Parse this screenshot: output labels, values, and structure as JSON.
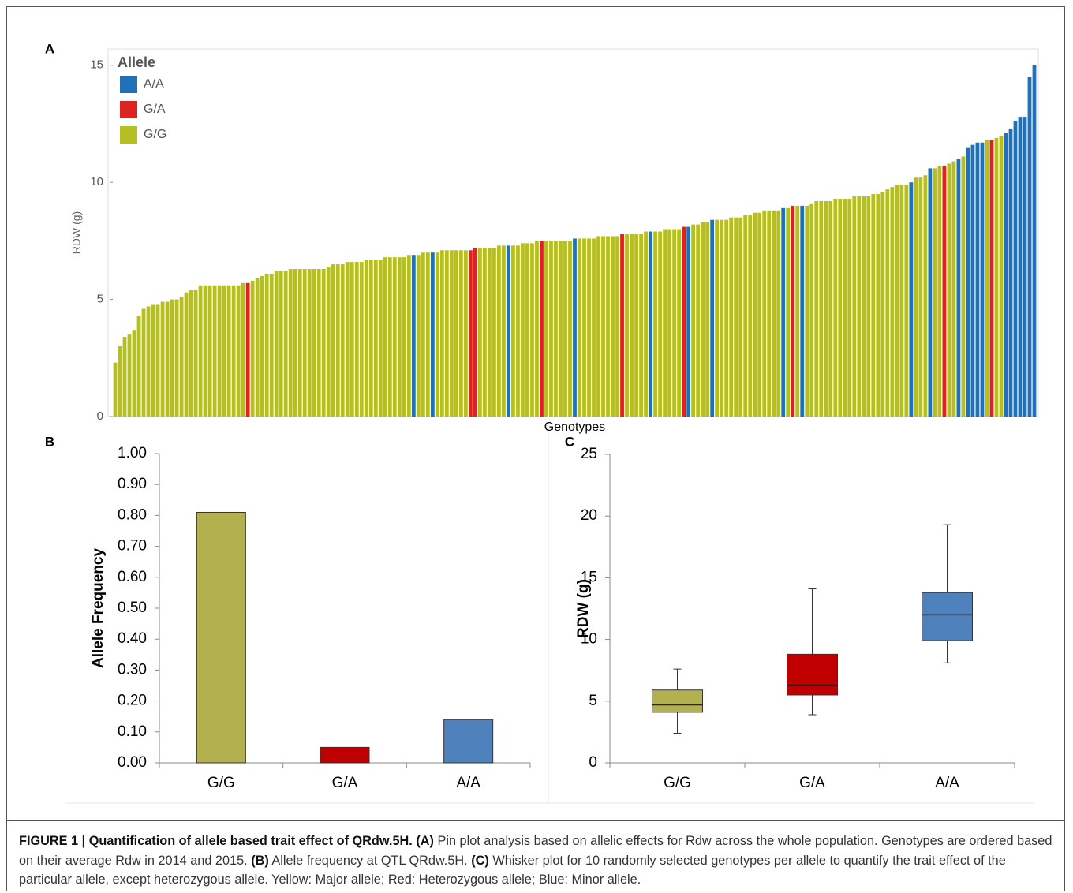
{
  "chart_data": [
    {
      "type": "bar",
      "panel": "A",
      "x_label": "Genotypes",
      "y_label": "RDW (g)",
      "legend_title": "Allele",
      "legend": "top-left",
      "series": [
        {
          "name": "A/A",
          "color": "#2271b8"
        },
        {
          "name": "G/A",
          "color": "#dd2222"
        },
        {
          "name": "G/G",
          "color": "#b5bf22"
        }
      ],
      "values": [
        2.3,
        3.0,
        3.4,
        3.5,
        3.7,
        4.3,
        4.6,
        4.7,
        4.8,
        4.8,
        4.9,
        4.9,
        5.0,
        5.0,
        5.1,
        5.3,
        5.4,
        5.4,
        5.6,
        5.6,
        5.6,
        5.6,
        5.6,
        5.6,
        5.6,
        5.6,
        5.6,
        5.7,
        5.7,
        5.8,
        5.9,
        6.0,
        6.1,
        6.1,
        6.2,
        6.2,
        6.2,
        6.3,
        6.3,
        6.3,
        6.3,
        6.3,
        6.3,
        6.3,
        6.3,
        6.4,
        6.5,
        6.5,
        6.5,
        6.6,
        6.6,
        6.6,
        6.6,
        6.7,
        6.7,
        6.7,
        6.7,
        6.8,
        6.8,
        6.8,
        6.8,
        6.8,
        6.9,
        6.9,
        6.9,
        7.0,
        7.0,
        7.0,
        7.0,
        7.1,
        7.1,
        7.1,
        7.1,
        7.1,
        7.1,
        7.1,
        7.2,
        7.2,
        7.2,
        7.2,
        7.2,
        7.3,
        7.3,
        7.3,
        7.3,
        7.3,
        7.4,
        7.4,
        7.4,
        7.5,
        7.5,
        7.5,
        7.5,
        7.5,
        7.5,
        7.5,
        7.5,
        7.6,
        7.6,
        7.6,
        7.6,
        7.6,
        7.7,
        7.7,
        7.7,
        7.7,
        7.7,
        7.8,
        7.8,
        7.8,
        7.8,
        7.8,
        7.9,
        7.9,
        7.9,
        7.9,
        8.0,
        8.0,
        8.0,
        8.0,
        8.1,
        8.1,
        8.2,
        8.2,
        8.3,
        8.3,
        8.4,
        8.4,
        8.4,
        8.4,
        8.5,
        8.5,
        8.5,
        8.6,
        8.6,
        8.7,
        8.7,
        8.8,
        8.8,
        8.8,
        8.8,
        8.9,
        8.9,
        9.0,
        9.0,
        9.0,
        9.0,
        9.1,
        9.2,
        9.2,
        9.2,
        9.2,
        9.3,
        9.3,
        9.3,
        9.3,
        9.4,
        9.4,
        9.4,
        9.4,
        9.5,
        9.5,
        9.6,
        9.7,
        9.8,
        9.9,
        9.9,
        9.9,
        10.0,
        10.2,
        10.2,
        10.3,
        10.6,
        10.6,
        10.7,
        10.7,
        10.8,
        10.9,
        11.0,
        11.1,
        11.5,
        11.6,
        11.7,
        11.7,
        11.8,
        11.8,
        11.9,
        12.0,
        12.1,
        12.3,
        12.6,
        12.8,
        12.8,
        14.5,
        15.0
      ],
      "groups": [
        2,
        2,
        2,
        2,
        2,
        2,
        2,
        2,
        2,
        2,
        2,
        2,
        2,
        2,
        2,
        2,
        2,
        2,
        2,
        2,
        2,
        2,
        2,
        2,
        2,
        2,
        2,
        2,
        1,
        2,
        2,
        2,
        2,
        2,
        2,
        2,
        2,
        2,
        2,
        2,
        2,
        2,
        2,
        2,
        2,
        2,
        2,
        2,
        2,
        2,
        2,
        2,
        2,
        2,
        2,
        2,
        2,
        2,
        2,
        2,
        2,
        2,
        2,
        0,
        2,
        2,
        2,
        0,
        2,
        2,
        2,
        2,
        2,
        2,
        2,
        1,
        1,
        2,
        2,
        2,
        2,
        2,
        2,
        0,
        2,
        2,
        2,
        2,
        2,
        2,
        1,
        2,
        2,
        2,
        2,
        2,
        2,
        0,
        2,
        2,
        2,
        2,
        2,
        2,
        2,
        2,
        2,
        1,
        2,
        2,
        2,
        2,
        2,
        0,
        2,
        2,
        2,
        2,
        2,
        2,
        1,
        0,
        2,
        2,
        2,
        2,
        0,
        2,
        2,
        2,
        2,
        2,
        2,
        2,
        2,
        2,
        2,
        2,
        2,
        2,
        2,
        0,
        2,
        1,
        2,
        0,
        2,
        2,
        2,
        2,
        2,
        2,
        2,
        2,
        2,
        2,
        2,
        2,
        2,
        2,
        2,
        2,
        2,
        2,
        2,
        2,
        2,
        2,
        0,
        2,
        2,
        2,
        0,
        2,
        2,
        1,
        2,
        2,
        0,
        2,
        0,
        0,
        0,
        0,
        2,
        1,
        2,
        2,
        0,
        0,
        0,
        0,
        0,
        0,
        0
      ],
      "ylim": [
        0,
        15.7
      ],
      "yticks": [
        0,
        5,
        10,
        15
      ]
    },
    {
      "type": "bar",
      "panel": "B",
      "y_label": "Allele Frequency",
      "categories": [
        "G/G",
        "G/A",
        "A/A"
      ],
      "values": [
        0.81,
        0.05,
        0.14
      ],
      "colors": [
        "#b3b050",
        "#c00000",
        "#4f81bd"
      ],
      "ylim": [
        0,
        1
      ],
      "yticks": [
        {
          "value": 0,
          "label": "0.00"
        },
        {
          "value": 0.1,
          "label": "0.10"
        },
        {
          "value": 0.2,
          "label": "0.20"
        },
        {
          "value": 0.3,
          "label": "0.30"
        },
        {
          "value": 0.4,
          "label": "0.40"
        },
        {
          "value": 0.5,
          "label": "0.50"
        },
        {
          "value": 0.6,
          "label": "0.60"
        },
        {
          "value": 0.7,
          "label": "0.70"
        },
        {
          "value": 0.8,
          "label": "0.80"
        },
        {
          "value": 0.9,
          "label": "0.90"
        },
        {
          "value": 1,
          "label": "1.00"
        }
      ]
    },
    {
      "type": "box",
      "panel": "C",
      "y_label": "RDW (g)",
      "categories": [
        "G/G",
        "G/A",
        "A/A"
      ],
      "colors": [
        "#b3b050",
        "#c00000",
        "#4f81bd"
      ],
      "whislo": [
        2.4,
        3.9,
        8.1
      ],
      "q1": [
        4.1,
        5.5,
        9.9
      ],
      "median": [
        4.7,
        6.3,
        12.0
      ],
      "q3": [
        5.9,
        8.8,
        13.8
      ],
      "whishi": [
        7.6,
        14.1,
        19.3
      ],
      "ylim": [
        0,
        25
      ],
      "yticks": [
        0,
        5,
        10,
        15,
        20,
        25
      ]
    }
  ],
  "caption": [
    {
      "text": "FIGURE 1 | Quantification of allele based trait effect of QRdw.5H.",
      "bold": true
    },
    {
      "text": " "
    },
    {
      "text": "(A)",
      "bold": true
    },
    {
      "text": " Pin plot analysis based on allelic effects for Rdw across the whole population. Genotypes are ordered based on their average Rdw in 2014 and 2015. "
    },
    {
      "text": "(B)",
      "bold": true
    },
    {
      "text": " Allele frequency at QTL QRdw.5H. "
    },
    {
      "text": "(C)",
      "bold": true
    },
    {
      "text": " Whisker plot for 10 randomly selected genotypes per allele to quantify the trait effect of the particular allele, except heterozygous allele. Yellow: Major allele; Red: Heterozygous allele; Blue: Minor allele."
    }
  ]
}
